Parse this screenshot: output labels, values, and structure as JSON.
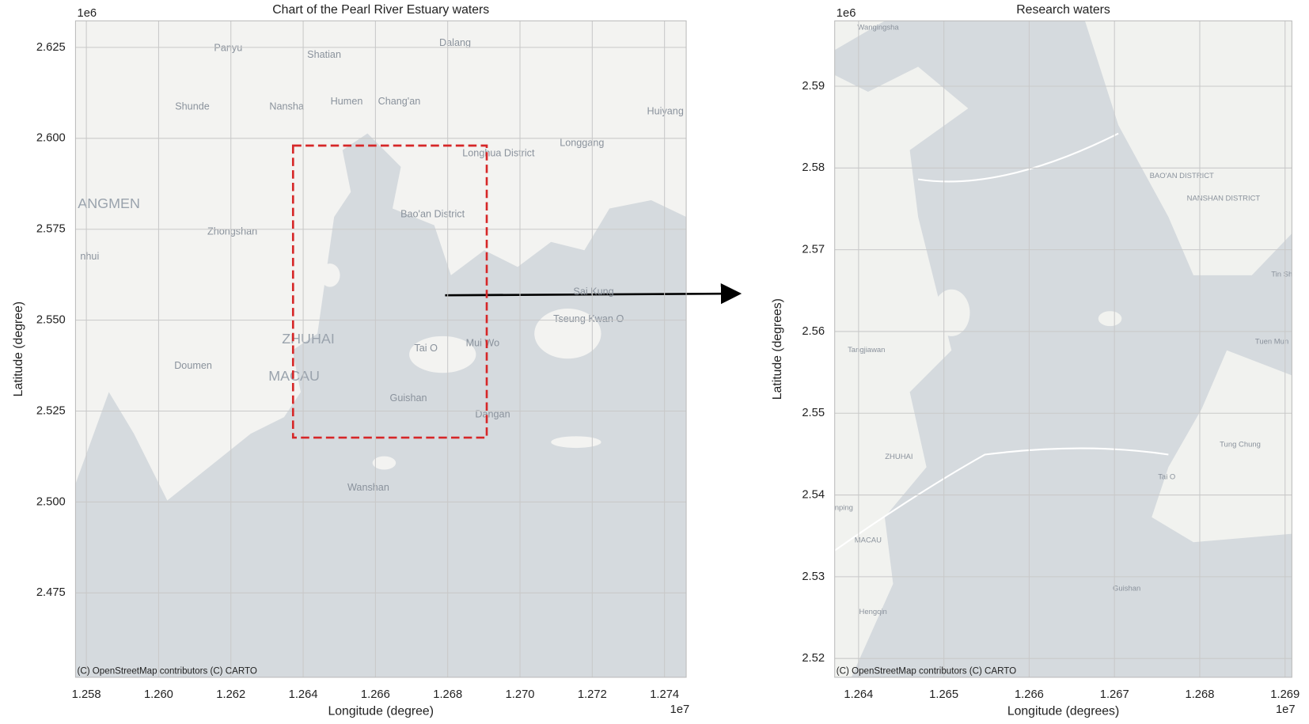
{
  "chart_data": [
    {
      "type": "map",
      "title": "Chart of the Pearl River Estuary waters",
      "x_label": "Longitude (degree)",
      "y_label": "Latitude (degree)",
      "x_offset_label": "1e7",
      "y_offset_label": "1e6",
      "attribution": "(C) OpenStreetMap contributors (C) CARTO",
      "xlim": [
        1.2577,
        1.2746
      ],
      "ylim": [
        2.4518,
        2.6323
      ],
      "xticks": [
        1.258,
        {
          "value": 1.26,
          "label": "1.260"
        },
        1.262,
        1.264,
        1.266,
        1.268,
        {
          "value": 1.27,
          "label": "1.270"
        },
        1.272,
        1.274
      ],
      "yticks": [
        2.475,
        {
          "value": 2.5,
          "label": "2.500"
        },
        2.525,
        {
          "value": 2.55,
          "label": "2.550"
        },
        2.575,
        {
          "value": 2.6,
          "label": "2.600"
        },
        2.625
      ],
      "grid": true,
      "place_labels": [
        "Panyu",
        "Dalang",
        "Shatian",
        "Shunde",
        "Nansha",
        "Humen",
        "Chang'an",
        "Huiyang",
        "Longgang",
        "Longhua District",
        "ANGMEN",
        "Zhongshan",
        "Bao'an District",
        "nhui",
        "Sai Kung",
        "ZHUHAI",
        "Tseung Kwan O",
        "Tai O",
        "Mui Wo",
        "Doumen",
        "MACAU",
        "Guishan",
        "Dangan",
        "Wanshan"
      ]
    },
    {
      "type": "map",
      "title": "Research waters",
      "x_label": "Longitude (degrees)",
      "y_label": "Latitude (degrees)",
      "x_offset_label": "1e7",
      "y_offset_label": "1e6",
      "attribution": "(C) OpenStreetMap contributors (C) CARTO",
      "xlim": [
        1.26372,
        1.26908
      ],
      "ylim": [
        2.5177,
        2.598
      ],
      "xticks": [
        1.264,
        1.265,
        1.266,
        1.267,
        1.268,
        1.269
      ],
      "yticks": [
        2.52,
        2.53,
        2.54,
        2.55,
        2.56,
        2.57,
        2.58,
        2.59
      ],
      "grid": true,
      "place_labels": [
        "Wangingsha",
        "BAO'AN DISTRICT",
        "NANSHAN DISTRICT",
        "Tin Sh",
        "Tangjiawan",
        "Tuen Mun",
        "ZHUHAI",
        "Tung Chung",
        "Tai O",
        "MACAU",
        "Hengqin",
        "Guishan",
        "nping"
      ]
    }
  ]
}
